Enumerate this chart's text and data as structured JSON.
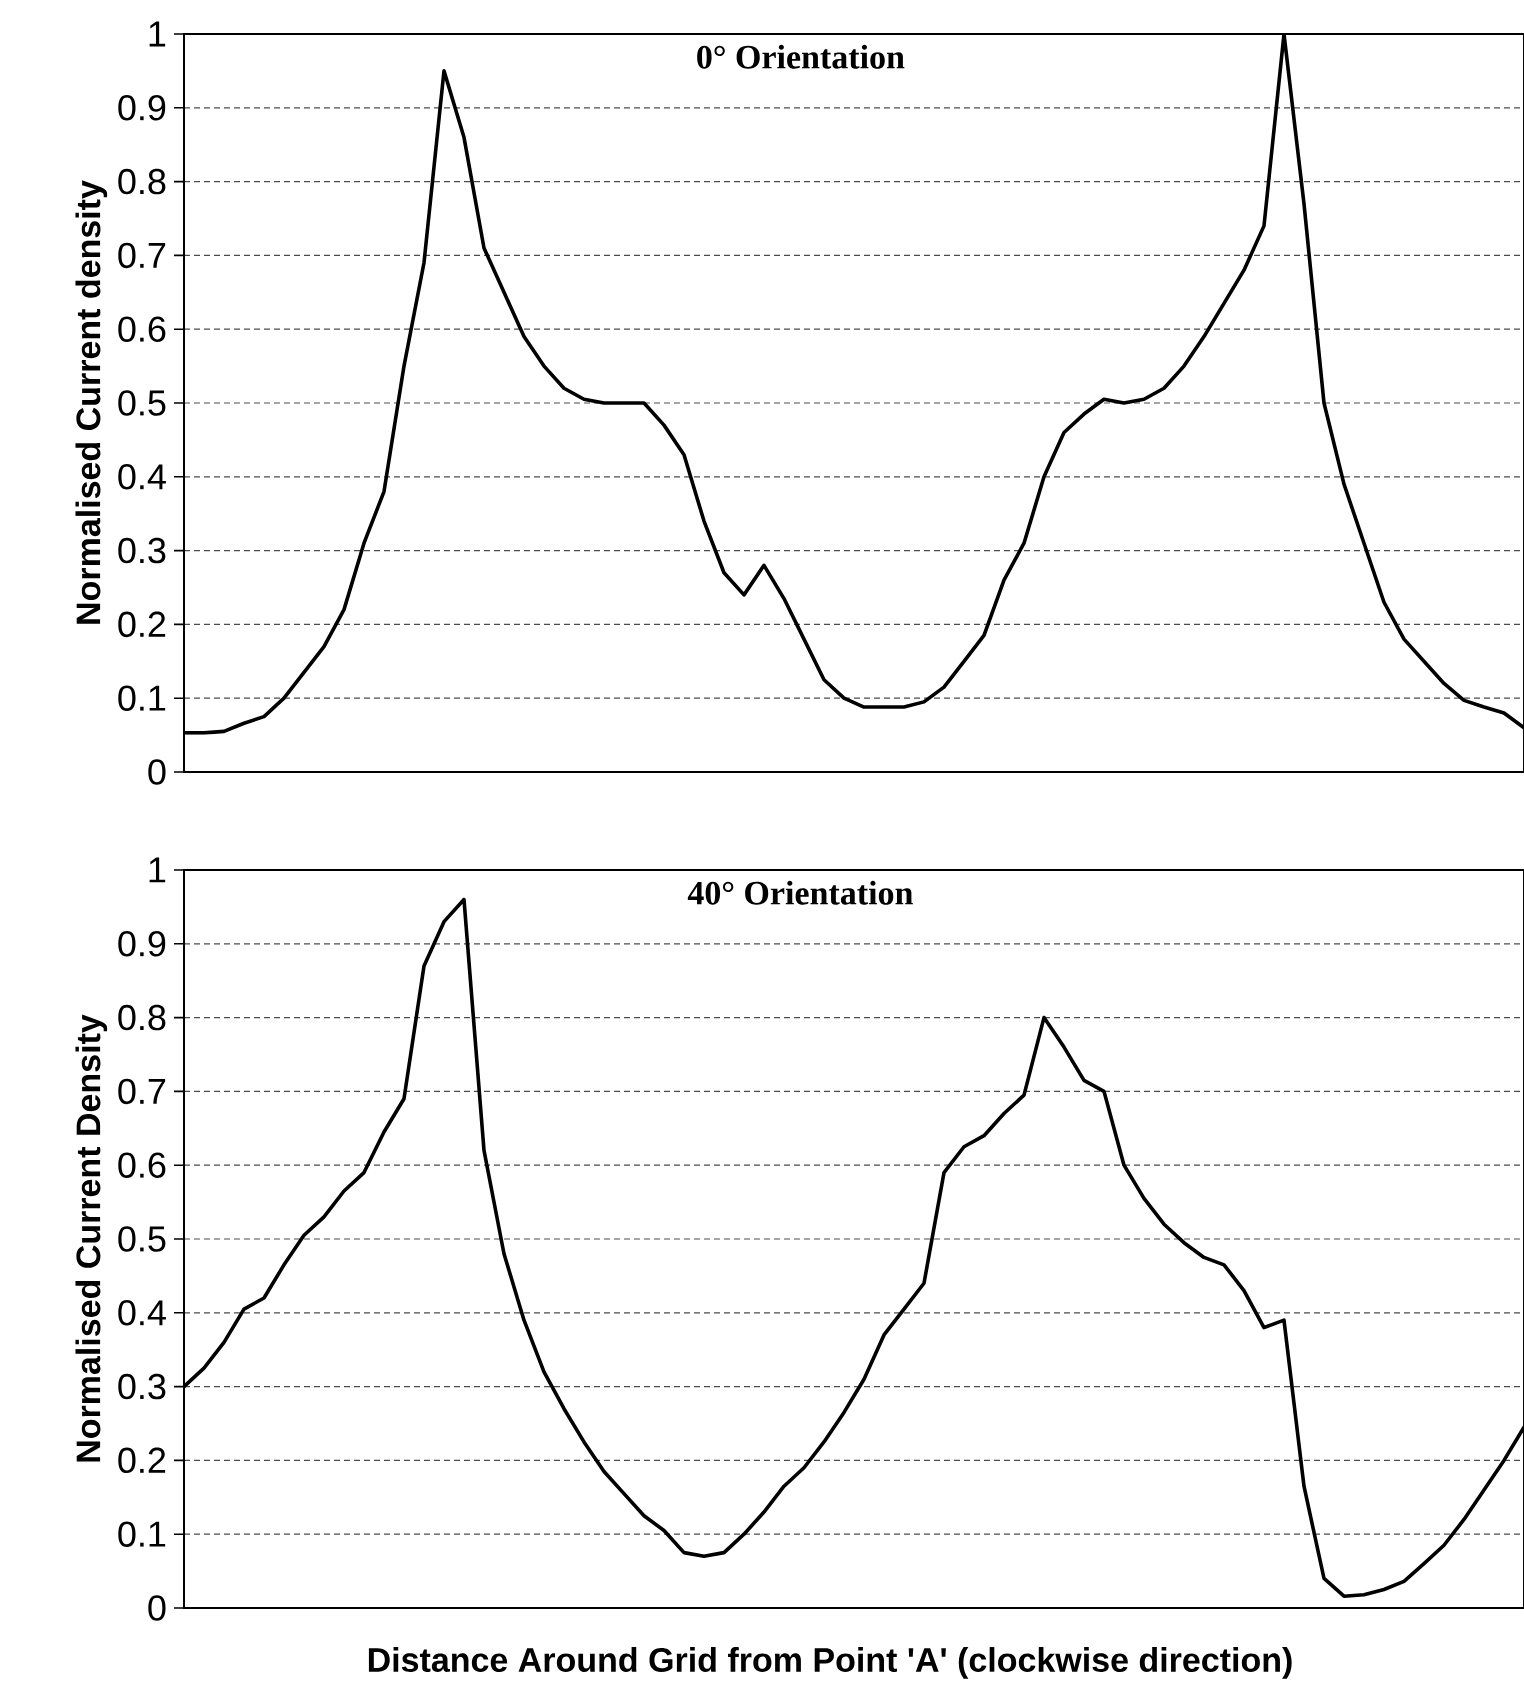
{
  "chart_data": [
    {
      "type": "line",
      "title": "0° Orientation",
      "ylabel": "Normalised Current density",
      "color": "#000000",
      "ylim": [
        0,
        1
      ],
      "yticks": [
        0,
        0.1,
        0.2,
        0.3,
        0.4,
        0.5,
        0.6,
        0.7,
        0.8,
        0.9,
        1
      ],
      "grid": "y",
      "tick_labels": "y",
      "marker": "none",
      "line_style": "solid",
      "categories": [
        null,
        null,
        null,
        null,
        null,
        null,
        null,
        null,
        null,
        null,
        null,
        null,
        null,
        null,
        null,
        null,
        null,
        null,
        null,
        null,
        null,
        null,
        null,
        null,
        null,
        null,
        null,
        null,
        null,
        null,
        null,
        null,
        null,
        null,
        null,
        null,
        null,
        null,
        null,
        null,
        null,
        null,
        null,
        null,
        null,
        null,
        null,
        null,
        null,
        null,
        null,
        null,
        null,
        null,
        null,
        null,
        null,
        null,
        null,
        null,
        null,
        null,
        null,
        null,
        null,
        null,
        null,
        null
      ],
      "values": [
        0.053,
        0.053,
        0.055,
        0.066,
        0.075,
        0.1,
        0.135,
        0.17,
        0.22,
        0.31,
        0.38,
        0.55,
        0.69,
        0.95,
        0.86,
        0.71,
        0.65,
        0.59,
        0.55,
        0.52,
        0.505,
        0.5,
        0.5,
        0.5,
        0.47,
        0.43,
        0.34,
        0.27,
        0.24,
        0.28,
        0.235,
        0.18,
        0.125,
        0.1,
        0.088,
        0.088,
        0.088,
        0.095,
        0.115,
        0.15,
        0.185,
        0.26,
        0.31,
        0.4,
        0.46,
        0.485,
        0.505,
        0.5,
        0.505,
        0.52,
        0.55,
        0.59,
        0.635,
        0.68,
        0.74,
        1.0,
        0.77,
        0.5,
        0.39,
        0.31,
        0.23,
        0.18,
        0.15,
        0.12,
        0.097,
        0.088,
        0.08,
        0.06
      ]
    },
    {
      "type": "line",
      "title": "40° Orientation",
      "ylabel": "Normalised Current Density",
      "xlabel": "Distance Around Grid from Point 'A' (clockwise direction)",
      "color": "#000000",
      "ylim": [
        0,
        1
      ],
      "yticks": [
        0,
        0.1,
        0.2,
        0.3,
        0.4,
        0.5,
        0.6,
        0.7,
        0.8,
        0.9,
        1
      ],
      "grid": "y",
      "tick_labels": "y",
      "marker": "none",
      "line_style": "solid",
      "categories": [
        null,
        null,
        null,
        null,
        null,
        null,
        null,
        null,
        null,
        null,
        null,
        null,
        null,
        null,
        null,
        null,
        null,
        null,
        null,
        null,
        null,
        null,
        null,
        null,
        null,
        null,
        null,
        null,
        null,
        null,
        null,
        null,
        null,
        null,
        null,
        null,
        null,
        null,
        null,
        null,
        null,
        null,
        null,
        null,
        null,
        null,
        null,
        null,
        null,
        null,
        null,
        null,
        null,
        null,
        null,
        null,
        null,
        null,
        null,
        null,
        null,
        null,
        null,
        null,
        null,
        null,
        null,
        null
      ],
      "values": [
        0.3,
        0.325,
        0.36,
        0.405,
        0.42,
        0.465,
        0.505,
        0.53,
        0.565,
        0.59,
        0.645,
        0.69,
        0.87,
        0.93,
        0.96,
        0.62,
        0.48,
        0.39,
        0.32,
        0.27,
        0.225,
        0.185,
        0.155,
        0.125,
        0.105,
        0.075,
        0.07,
        0.075,
        0.1,
        0.13,
        0.165,
        0.19,
        0.225,
        0.265,
        0.31,
        0.37,
        0.405,
        0.44,
        0.59,
        0.625,
        0.64,
        0.67,
        0.695,
        0.8,
        0.76,
        0.715,
        0.7,
        0.6,
        0.555,
        0.52,
        0.495,
        0.475,
        0.465,
        0.43,
        0.38,
        0.39,
        0.165,
        0.04,
        0.016,
        0.018,
        0.025,
        0.036,
        0.06,
        0.085,
        0.12,
        0.16,
        0.2,
        0.245
      ]
    }
  ]
}
